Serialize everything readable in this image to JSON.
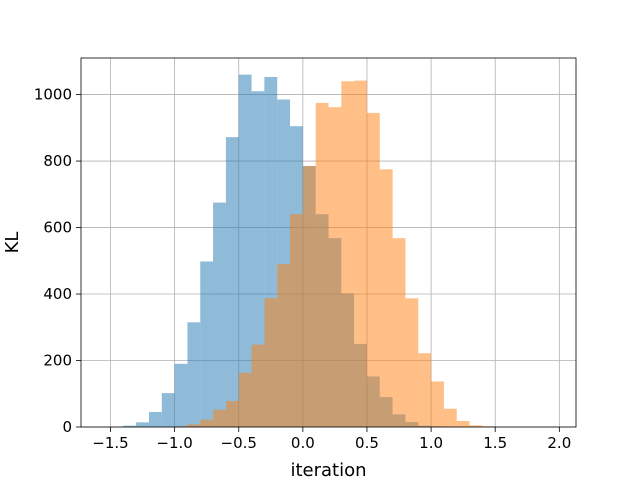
{
  "chart_data": {
    "type": "bar",
    "subtype": "overlapping-histogram",
    "title": "",
    "xlabel": "iteration",
    "ylabel": "KL",
    "xlim": [
      -1.73,
      2.13
    ],
    "ylim": [
      0,
      1110
    ],
    "xticks": [
      -1.5,
      -1.0,
      -0.5,
      0.0,
      0.5,
      1.0,
      1.5,
      2.0
    ],
    "xtick_labels": [
      "−1.5",
      "−1.0",
      "−0.5",
      "0.0",
      "0.5",
      "1.0",
      "1.5",
      "2.0"
    ],
    "yticks": [
      0,
      200,
      400,
      600,
      800,
      1000
    ],
    "ytick_labels": [
      "0",
      "200",
      "400",
      "600",
      "800",
      "1000"
    ],
    "grid": true,
    "bin_width": 0.1,
    "series": [
      {
        "color": "#1f77b4",
        "alpha": 0.5,
        "bins": [
          {
            "x0": -1.4,
            "x1": -1.3,
            "count": 4
          },
          {
            "x0": -1.3,
            "x1": -1.2,
            "count": 14
          },
          {
            "x0": -1.2,
            "x1": -1.1,
            "count": 45
          },
          {
            "x0": -1.1,
            "x1": -1.0,
            "count": 102
          },
          {
            "x0": -1.0,
            "x1": -0.9,
            "count": 190
          },
          {
            "x0": -0.9,
            "x1": -0.8,
            "count": 315
          },
          {
            "x0": -0.8,
            "x1": -0.7,
            "count": 498
          },
          {
            "x0": -0.7,
            "x1": -0.6,
            "count": 675
          },
          {
            "x0": -0.6,
            "x1": -0.5,
            "count": 872
          },
          {
            "x0": -0.5,
            "x1": -0.4,
            "count": 1060
          },
          {
            "x0": -0.4,
            "x1": -0.3,
            "count": 1010
          },
          {
            "x0": -0.3,
            "x1": -0.2,
            "count": 1053
          },
          {
            "x0": -0.2,
            "x1": -0.1,
            "count": 985
          },
          {
            "x0": -0.1,
            "x1": 0.0,
            "count": 905
          },
          {
            "x0": 0.0,
            "x1": 0.1,
            "count": 785
          },
          {
            "x0": 0.1,
            "x1": 0.2,
            "count": 640
          },
          {
            "x0": 0.2,
            "x1": 0.3,
            "count": 568
          },
          {
            "x0": 0.3,
            "x1": 0.4,
            "count": 402
          },
          {
            "x0": 0.4,
            "x1": 0.5,
            "count": 250
          },
          {
            "x0": 0.5,
            "x1": 0.6,
            "count": 152
          },
          {
            "x0": 0.6,
            "x1": 0.7,
            "count": 90
          },
          {
            "x0": 0.7,
            "x1": 0.8,
            "count": 38
          },
          {
            "x0": 0.8,
            "x1": 0.9,
            "count": 15
          },
          {
            "x0": 0.9,
            "x1": 1.0,
            "count": 4
          },
          {
            "x0": 1.0,
            "x1": 1.1,
            "count": 2
          }
        ]
      },
      {
        "color": "#ff7f0e",
        "alpha": 0.5,
        "bins": [
          {
            "x0": -1.0,
            "x1": -0.9,
            "count": 2
          },
          {
            "x0": -0.9,
            "x1": -0.8,
            "count": 8
          },
          {
            "x0": -0.8,
            "x1": -0.7,
            "count": 22
          },
          {
            "x0": -0.7,
            "x1": -0.6,
            "count": 52
          },
          {
            "x0": -0.6,
            "x1": -0.5,
            "count": 78
          },
          {
            "x0": -0.5,
            "x1": -0.4,
            "count": 163
          },
          {
            "x0": -0.4,
            "x1": -0.3,
            "count": 248
          },
          {
            "x0": -0.3,
            "x1": -0.2,
            "count": 388
          },
          {
            "x0": -0.2,
            "x1": -0.1,
            "count": 490
          },
          {
            "x0": -0.1,
            "x1": 0.0,
            "count": 640
          },
          {
            "x0": 0.0,
            "x1": 0.1,
            "count": 785
          },
          {
            "x0": 0.1,
            "x1": 0.2,
            "count": 975
          },
          {
            "x0": 0.2,
            "x1": 0.3,
            "count": 962
          },
          {
            "x0": 0.3,
            "x1": 0.4,
            "count": 1040
          },
          {
            "x0": 0.4,
            "x1": 0.5,
            "count": 1042
          },
          {
            "x0": 0.5,
            "x1": 0.6,
            "count": 945
          },
          {
            "x0": 0.6,
            "x1": 0.7,
            "count": 775
          },
          {
            "x0": 0.7,
            "x1": 0.8,
            "count": 568
          },
          {
            "x0": 0.8,
            "x1": 0.9,
            "count": 387
          },
          {
            "x0": 0.9,
            "x1": 1.0,
            "count": 222
          },
          {
            "x0": 1.0,
            "x1": 1.1,
            "count": 137
          },
          {
            "x0": 1.1,
            "x1": 1.2,
            "count": 55
          },
          {
            "x0": 1.2,
            "x1": 1.3,
            "count": 18
          },
          {
            "x0": 1.3,
            "x1": 1.4,
            "count": 5
          },
          {
            "x0": 1.4,
            "x1": 1.5,
            "count": 2
          }
        ]
      }
    ]
  }
}
